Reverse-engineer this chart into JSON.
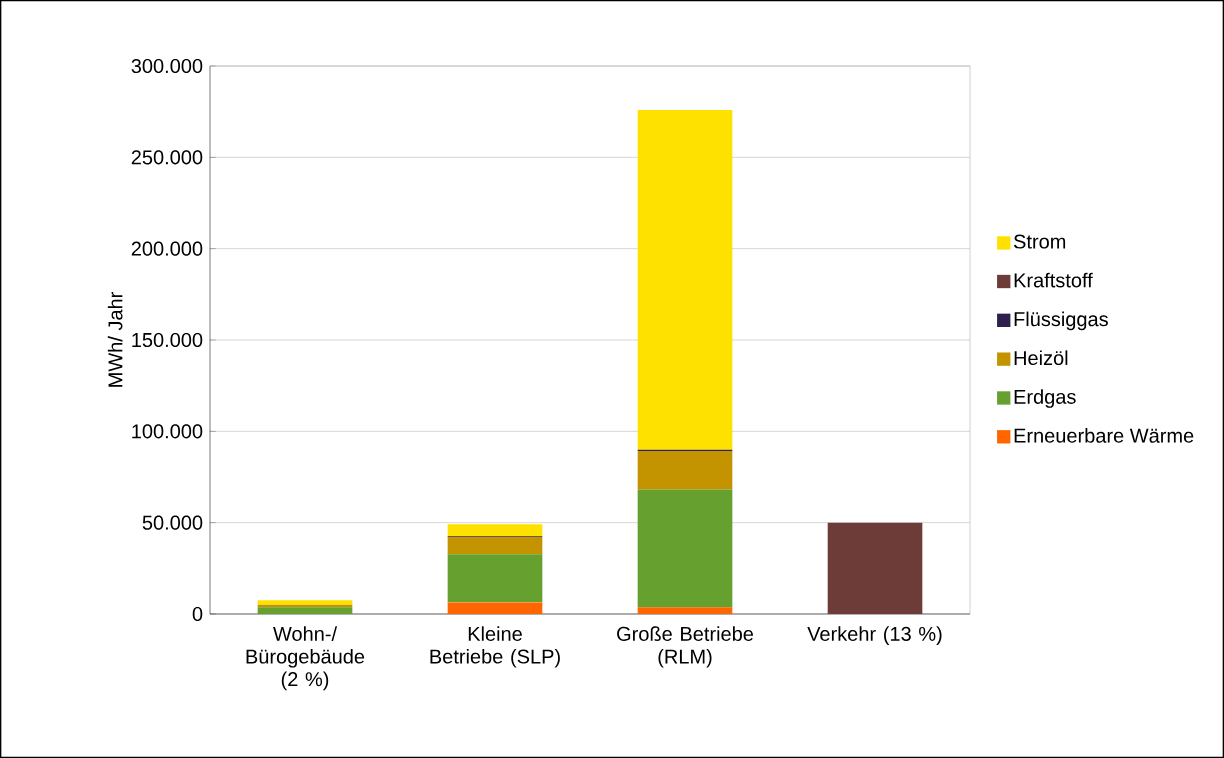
{
  "chart_data": {
    "type": "bar",
    "stacked": true,
    "ylabel": "MWh/ Jahr",
    "categories": [
      "Wohn-/ Bürogebäude (2 %)",
      "Kleine Betriebe (SLP)",
      "Große Betriebe (RLM)",
      "Verkehr (13 %)"
    ],
    "series": [
      {
        "name": "Erneuerbare Wärme",
        "color": "#ff6600",
        "values": [
          0,
          6400,
          3700,
          0
        ]
      },
      {
        "name": "Erdgas",
        "color": "#66a02e",
        "values": [
          3700,
          26300,
          64500,
          0
        ]
      },
      {
        "name": "Heizöl",
        "color": "#c49400",
        "values": [
          1300,
          9500,
          21000,
          0
        ]
      },
      {
        "name": "Flüssiggas",
        "color": "#2e1f4f",
        "values": [
          0,
          300,
          700,
          0
        ]
      },
      {
        "name": "Kraftstoff",
        "color": "#6e3c38",
        "values": [
          0,
          0,
          0,
          50000
        ]
      },
      {
        "name": "Strom",
        "color": "#ffe100",
        "values": [
          2500,
          6700,
          186000,
          0
        ]
      }
    ],
    "ylim": [
      0,
      300000
    ],
    "yticks": [
      {
        "value": 0,
        "label": "0"
      },
      {
        "value": 50000,
        "label": "50.000"
      },
      {
        "value": 100000,
        "label": "100.000"
      },
      {
        "value": 150000,
        "label": "150.000"
      },
      {
        "value": 200000,
        "label": "200.000"
      },
      {
        "value": 250000,
        "label": "250.000"
      },
      {
        "value": 300000,
        "label": "300.000"
      }
    ],
    "grid": "y",
    "legend": "right"
  }
}
